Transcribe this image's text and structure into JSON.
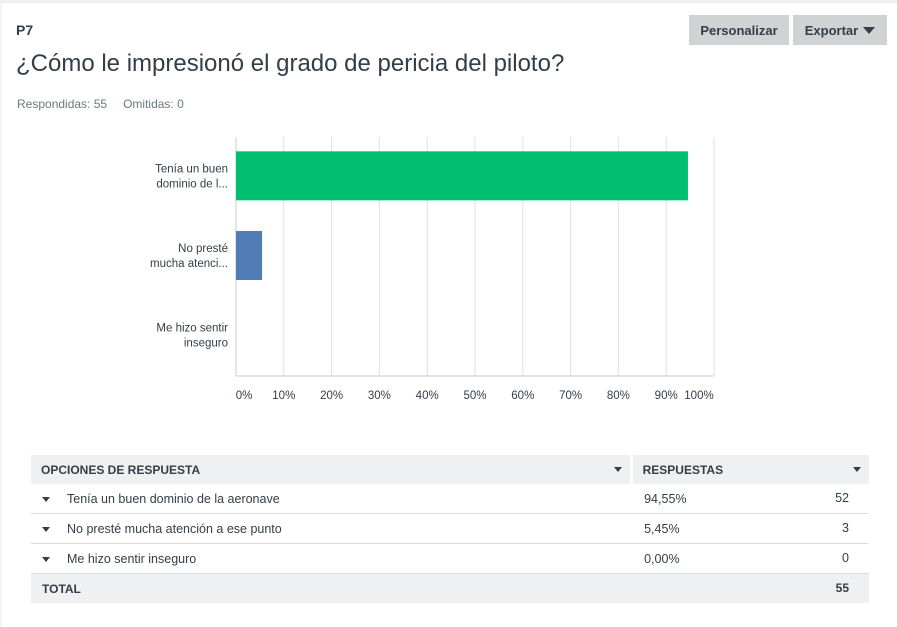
{
  "question": {
    "number": "P7",
    "title": "¿Cómo le impresionó el grado de pericia del piloto?"
  },
  "toolbar": {
    "customize_label": "Personalizar",
    "export_label": "Exportar",
    "export_icon": "caret-down-icon"
  },
  "stats": {
    "answered": "Respondidas: 55",
    "skipped": "Omitidas: 0"
  },
  "colors": {
    "bar_series": [
      "#00bf6f",
      "#507cb6",
      "#f05b24"
    ],
    "grid": "#e0e2e3",
    "axis_text": "#333e48"
  },
  "chart_data": {
    "type": "bar",
    "orientation": "horizontal",
    "categories": [
      "Tenía un buen dominio de l...",
      "No presté mucha atenci...",
      "Me hizo sentir inseguro"
    ],
    "category_lines": [
      [
        "Tenía un buen",
        "dominio de l..."
      ],
      [
        "No presté",
        "mucha atenci..."
      ],
      [
        "Me hizo sentir",
        "inseguro"
      ]
    ],
    "values": [
      94.55,
      5.45,
      0.0
    ],
    "xlim": [
      0,
      100
    ],
    "xticks": [
      "0%",
      "10%",
      "20%",
      "30%",
      "40%",
      "50%",
      "60%",
      "70%",
      "80%",
      "90%",
      "100%"
    ],
    "grid": true,
    "title": "",
    "xlabel": "",
    "ylabel": ""
  },
  "table": {
    "headers": {
      "options": "OPCIONES DE RESPUESTA",
      "responses": "RESPUESTAS"
    },
    "rows": [
      {
        "label": "Tenía un buen dominio de la aeronave",
        "percent": "94,55%",
        "count": "52"
      },
      {
        "label": "No presté mucha atención a ese punto",
        "percent": "5,45%",
        "count": "3"
      },
      {
        "label": "Me hizo sentir inseguro",
        "percent": "0,00%",
        "count": "0"
      }
    ],
    "total": {
      "label": "TOTAL",
      "count": "55"
    }
  }
}
